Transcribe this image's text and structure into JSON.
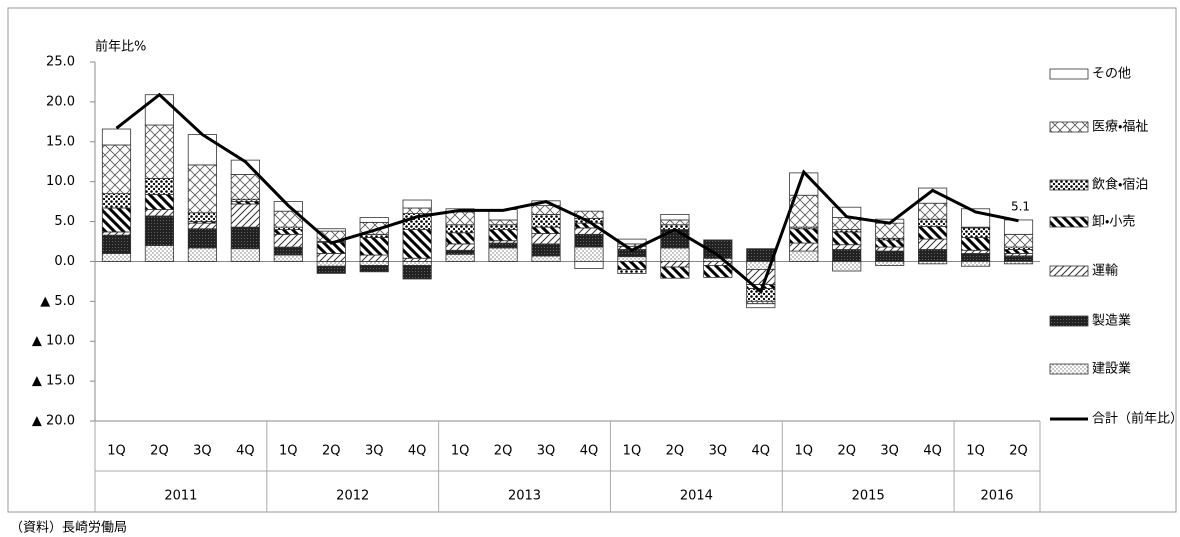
{
  "chart_data": {
    "type": "bar",
    "y_unit_label": "前年比%",
    "source": "（資料）長崎労働局",
    "year_groups": [
      {
        "label": "2011",
        "quarters": [
          "1Q",
          "2Q",
          "3Q",
          "4Q"
        ]
      },
      {
        "label": "2012",
        "quarters": [
          "1Q",
          "2Q",
          "3Q",
          "4Q"
        ]
      },
      {
        "label": "2013",
        "quarters": [
          "1Q",
          "2Q",
          "3Q",
          "4Q"
        ]
      },
      {
        "label": "2014",
        "quarters": [
          "1Q",
          "2Q",
          "3Q",
          "4Q"
        ]
      },
      {
        "label": "2015",
        "quarters": [
          "1Q",
          "2Q",
          "3Q",
          "4Q"
        ]
      },
      {
        "label": "2016",
        "quarters": [
          "1Q",
          "2Q"
        ]
      }
    ],
    "ylim": [
      -20,
      25
    ],
    "yticks": [
      {
        "value": 25,
        "label": "25.0"
      },
      {
        "value": 20,
        "label": "20.0"
      },
      {
        "value": 15,
        "label": "15.0"
      },
      {
        "value": 10,
        "label": "10.0"
      },
      {
        "value": 5,
        "label": "5.0"
      },
      {
        "value": 0,
        "label": "0.0"
      },
      {
        "value": -5,
        "label": "▲ 5.0"
      },
      {
        "value": -10,
        "label": "▲ 10.0"
      },
      {
        "value": -15,
        "label": "▲ 15.0"
      },
      {
        "value": -20,
        "label": "▲ 20.0"
      }
    ],
    "grid": false,
    "series": [
      {
        "name": "建設業",
        "pattern": "light-dots",
        "color": "#888888",
        "values": [
          1.0,
          2.0,
          1.7,
          1.6,
          0.8,
          -0.6,
          -0.5,
          -0.5,
          0.9,
          1.7,
          0.7,
          1.8,
          0.6,
          1.7,
          0.4,
          -1.0,
          1.3,
          -1.2,
          -0.5,
          -0.3,
          -0.6,
          -0.3
        ]
      },
      {
        "name": "製造業",
        "pattern": "dark",
        "color": "#222222",
        "values": [
          2.3,
          3.7,
          2.4,
          2.7,
          1.0,
          -0.9,
          -0.8,
          -1.7,
          0.5,
          0.6,
          1.5,
          1.6,
          0.9,
          2.3,
          2.3,
          1.6,
          0.0,
          1.5,
          1.3,
          1.5,
          1.0,
          0.7
        ]
      },
      {
        "name": "運輸",
        "pattern": "slash",
        "color": "#444444",
        "values": [
          0.4,
          0.8,
          0.7,
          2.9,
          1.6,
          1.0,
          0.8,
          0.4,
          0.8,
          0.3,
          1.3,
          0.8,
          0.4,
          -0.7,
          -0.5,
          -1.9,
          1.0,
          0.6,
          0.5,
          1.3,
          0.4,
          0.3
        ]
      },
      {
        "name": "卸・小売",
        "pattern": "backslash",
        "color": "#000000",
        "values": [
          3.0,
          1.9,
          0.2,
          0.3,
          0.6,
          1.4,
          2.2,
          3.6,
          1.4,
          1.4,
          0.8,
          0.6,
          -1.0,
          -1.4,
          -1.5,
          -0.5,
          1.8,
          1.6,
          0.9,
          1.6,
          1.6,
          0.5
        ]
      },
      {
        "name": "飲食・宿泊",
        "pattern": "dots",
        "color": "#000000",
        "values": [
          1.8,
          2.0,
          1.1,
          0.3,
          0.3,
          0.1,
          0.4,
          2.0,
          1.0,
          0.6,
          1.6,
          0.6,
          -0.5,
          0.6,
          0.0,
          -1.6,
          0.2,
          0.3,
          0.2,
          0.9,
          1.2,
          0.3
        ]
      },
      {
        "name": "医療・福祉",
        "pattern": "crosshatch",
        "color": "#444444",
        "values": [
          6.1,
          6.7,
          6.0,
          3.1,
          2.0,
          1.3,
          1.5,
          0.7,
          1.6,
          0.6,
          1.1,
          0.9,
          0.3,
          0.6,
          0.0,
          -0.3,
          4.0,
          1.5,
          1.9,
          2.0,
          0.1,
          1.6
        ]
      },
      {
        "name": "その他",
        "pattern": "white",
        "color": "#ffffff",
        "values": [
          2.0,
          3.8,
          3.8,
          1.8,
          1.2,
          0.3,
          0.6,
          1.0,
          0.4,
          1.3,
          0.6,
          -0.9,
          0.6,
          0.7,
          0.0,
          -0.5,
          2.8,
          1.3,
          0.5,
          1.9,
          2.3,
          1.8
        ]
      }
    ],
    "line_series": {
      "name": "合計（前年比）",
      "color": "#000000",
      "values": [
        16.7,
        20.9,
        15.9,
        12.5,
        7.0,
        2.3,
        3.9,
        5.6,
        6.4,
        6.4,
        7.5,
        5.0,
        1.4,
        4.0,
        0.8,
        -3.8,
        11.2,
        5.6,
        4.8,
        8.9,
        6.2,
        5.1
      ],
      "value_labels": [
        null,
        null,
        null,
        null,
        null,
        null,
        null,
        null,
        null,
        null,
        null,
        null,
        null,
        null,
        null,
        null,
        null,
        null,
        null,
        null,
        null,
        "5.1"
      ]
    }
  }
}
